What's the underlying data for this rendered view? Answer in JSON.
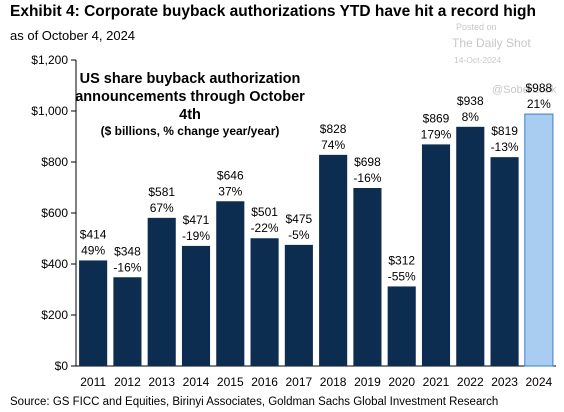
{
  "header": {
    "title": "Exhibit 4: Corporate buyback authorizations YTD have hit a record high",
    "subtitle": "as of October 4, 2024"
  },
  "watermark": {
    "posted": "Posted on",
    "name": "The Daily Shot",
    "date": "14-Oct-2024",
    "handle": "@SoberLook"
  },
  "chart_data": {
    "type": "bar",
    "title": "US share buyback authorization announcements through October 4th",
    "subtitle": "($ billions, % change year/year)",
    "categories": [
      "2011",
      "2012",
      "2013",
      "2014",
      "2015",
      "2016",
      "2017",
      "2018",
      "2019",
      "2020",
      "2021",
      "2022",
      "2023",
      "2024"
    ],
    "values": [
      414,
      348,
      581,
      471,
      646,
      501,
      475,
      828,
      698,
      312,
      869,
      938,
      819,
      988
    ],
    "value_labels": [
      "$414",
      "$348",
      "$581",
      "$471",
      "$646",
      "$501",
      "$475",
      "$828",
      "$698",
      "$312",
      "$869",
      "$938",
      "$819",
      "$988"
    ],
    "pct_labels": [
      "49%",
      "-16%",
      "67%",
      "-19%",
      "37%",
      "-22%",
      "-5%",
      "74%",
      "-16%",
      "-55%",
      "179%",
      "8%",
      "-13%",
      "21%"
    ],
    "ylim": [
      0,
      1200
    ],
    "yticks": [
      0,
      200,
      400,
      600,
      800,
      1000,
      1200
    ],
    "ytick_labels": [
      "$0",
      "$200",
      "$400",
      "$600",
      "$800",
      "$1,000",
      "$1,200"
    ],
    "grid": false,
    "bar_color": "#0d2d50",
    "highlight_color": "#a8cdf0",
    "highlight_index": 13
  },
  "footer": {
    "source": "Source: GS FICC and Equities, Birinyi Associates, Goldman Sachs Global Investment Research"
  }
}
